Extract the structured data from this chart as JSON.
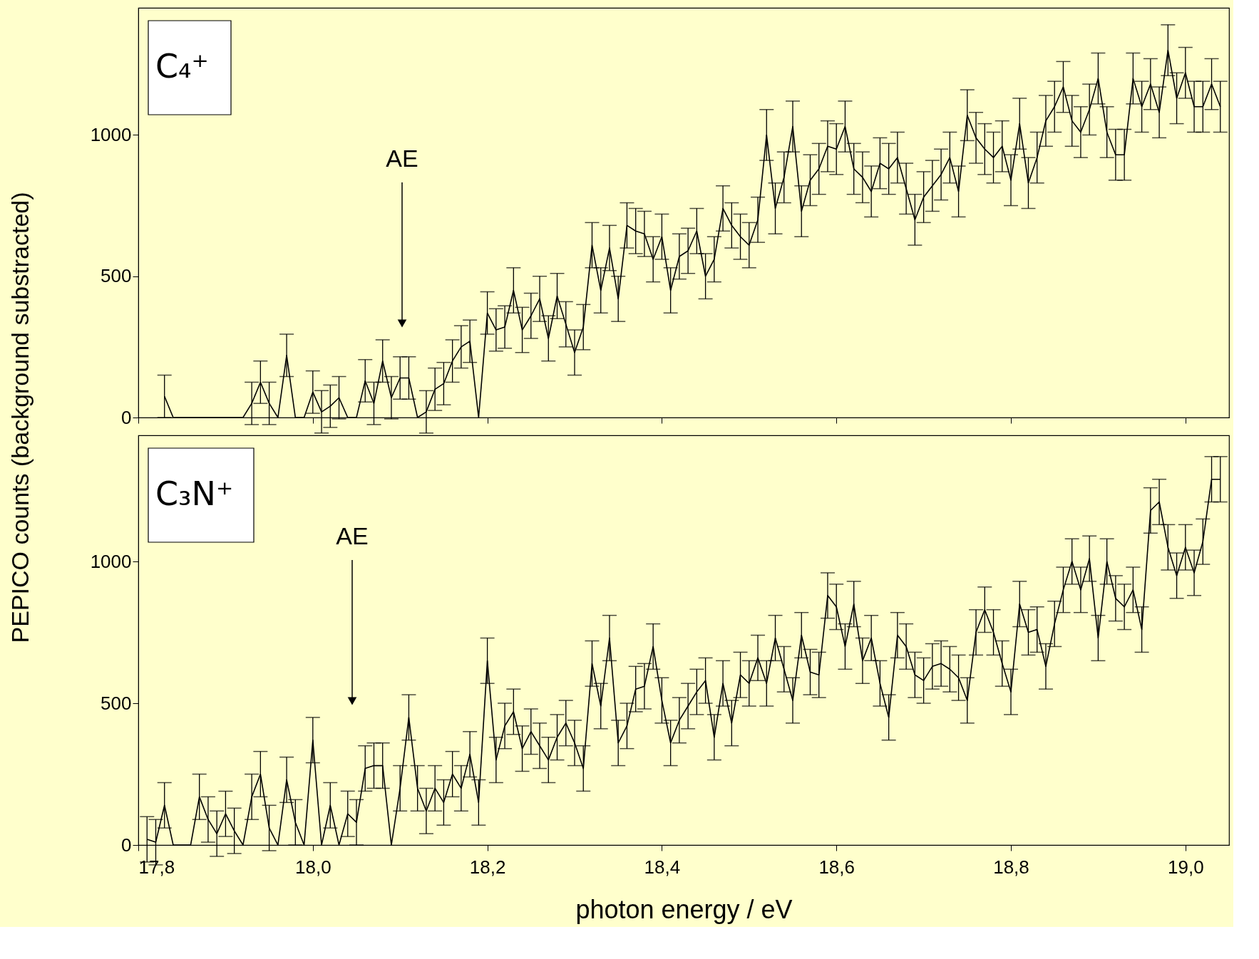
{
  "chart_data": [
    {
      "type": "line",
      "title": "C₄⁺",
      "ylabel": "PEPICO counts (background substracted)",
      "color": "#000000",
      "line_style": "solid",
      "grid": false,
      "tick_labels": "y",
      "xlim": [
        17.8,
        19.05
      ],
      "ylim": [
        0,
        1450
      ],
      "xticks": [
        {
          "value": 17.8,
          "label": null
        },
        {
          "value": 18.0,
          "label": null
        },
        {
          "value": 18.2,
          "label": null
        },
        {
          "value": 18.4,
          "label": null
        },
        {
          "value": 18.6,
          "label": null
        },
        {
          "value": 18.8,
          "label": null
        },
        {
          "value": 19.0,
          "label": null
        }
      ],
      "yticks": [
        0,
        500,
        1000
      ],
      "annotations": [
        "AE"
      ],
      "x": [
        17.83,
        17.84,
        17.85,
        17.86,
        17.87,
        17.88,
        17.89,
        17.9,
        17.91,
        17.92,
        17.93,
        17.94,
        17.95,
        17.96,
        17.97,
        17.98,
        17.99,
        18.0,
        18.01,
        18.02,
        18.03,
        18.04,
        18.05,
        18.06,
        18.07,
        18.08,
        18.09,
        18.1,
        18.11,
        18.12,
        18.13,
        18.14,
        18.15,
        18.16,
        18.17,
        18.18,
        18.19,
        18.2,
        18.21,
        18.22,
        18.23,
        18.24,
        18.25,
        18.26,
        18.27,
        18.28,
        18.29,
        18.3,
        18.31,
        18.32,
        18.33,
        18.34,
        18.35,
        18.36,
        18.37,
        18.38,
        18.39,
        18.4,
        18.41,
        18.42,
        18.43,
        18.44,
        18.45,
        18.46,
        18.47,
        18.48,
        18.49,
        18.5,
        18.51,
        18.52,
        18.53,
        18.54,
        18.55,
        18.56,
        18.57,
        18.58,
        18.59,
        18.6,
        18.61,
        18.62,
        18.63,
        18.64,
        18.65,
        18.66,
        18.67,
        18.68,
        18.69,
        18.7,
        18.71,
        18.72,
        18.73,
        18.74,
        18.75,
        18.76,
        18.77,
        18.78,
        18.79,
        18.8,
        18.81,
        18.82,
        18.83,
        18.84,
        18.85,
        18.86,
        18.87,
        18.88,
        18.89,
        18.9,
        18.91,
        18.92,
        18.93,
        18.94,
        18.95,
        18.96,
        18.97,
        18.98,
        18.99,
        19.0,
        19.01,
        19.02,
        19.03,
        19.04
      ],
      "values": [
        75,
        0,
        0,
        0,
        0,
        0,
        0,
        0,
        0,
        0,
        50,
        125,
        50,
        0,
        220,
        0,
        0,
        90,
        20,
        40,
        70,
        0,
        0,
        130,
        50,
        200,
        70,
        140,
        140,
        0,
        20,
        100,
        120,
        200,
        250,
        270,
        0,
        370,
        310,
        320,
        450,
        310,
        360,
        420,
        280,
        430,
        330,
        230,
        320,
        610,
        450,
        600,
        420,
        680,
        660,
        650,
        560,
        640,
        450,
        570,
        590,
        660,
        500,
        560,
        740,
        680,
        640,
        610,
        700,
        1000,
        740,
        850,
        1030,
        730,
        840,
        880,
        960,
        950,
        1030,
        880,
        850,
        800,
        900,
        880,
        920,
        810,
        700,
        780,
        820,
        860,
        920,
        800,
        1070,
        990,
        950,
        920,
        960,
        840,
        1040,
        830,
        920,
        1050,
        1100,
        1170,
        1050,
        1010,
        1090,
        1200,
        1010,
        930,
        930,
        1200,
        1100,
        1180,
        1080,
        1300,
        1130,
        1220,
        1100,
        1100,
        1180,
        1100
      ],
      "errors": [
        75,
        null,
        null,
        null,
        null,
        null,
        null,
        null,
        null,
        null,
        75,
        75,
        75,
        null,
        75,
        null,
        null,
        75,
        75,
        75,
        75,
        null,
        null,
        75,
        75,
        75,
        75,
        75,
        75,
        null,
        75,
        75,
        75,
        75,
        75,
        75,
        null,
        75,
        75,
        75,
        80,
        80,
        80,
        80,
        80,
        80,
        80,
        80,
        80,
        80,
        80,
        80,
        80,
        80,
        80,
        80,
        80,
        80,
        80,
        80,
        80,
        80,
        80,
        80,
        80,
        80,
        80,
        80,
        80,
        90,
        90,
        90,
        90,
        90,
        90,
        90,
        90,
        90,
        90,
        90,
        90,
        90,
        90,
        90,
        90,
        90,
        90,
        90,
        90,
        90,
        90,
        90,
        90,
        90,
        90,
        90,
        90,
        90,
        90,
        90,
        90,
        90,
        90,
        90,
        90,
        90,
        90,
        90,
        90,
        90,
        90,
        90,
        90,
        90,
        90,
        90,
        90,
        90,
        90,
        90,
        90,
        90
      ]
    },
    {
      "type": "line",
      "title": "C₃N⁺",
      "xlabel": "photon energy / eV",
      "color": "#000000",
      "line_style": "solid",
      "grid": false,
      "xlim": [
        17.8,
        19.05
      ],
      "ylim": [
        0,
        1445
      ],
      "xticks": [
        {
          "value": 17.8,
          "label": "17,8"
        },
        {
          "value": 18.0,
          "label": "18,0"
        },
        {
          "value": 18.2,
          "label": "18,2"
        },
        {
          "value": 18.4,
          "label": "18,4"
        },
        {
          "value": 18.6,
          "label": "18,6"
        },
        {
          "value": 18.8,
          "label": "18,8"
        },
        {
          "value": 19.0,
          "label": "19,0"
        }
      ],
      "yticks": [
        0,
        500,
        1000
      ],
      "annotations": [
        "AE"
      ],
      "x": [
        17.81,
        17.82,
        17.83,
        17.84,
        17.85,
        17.86,
        17.87,
        17.88,
        17.89,
        17.9,
        17.91,
        17.92,
        17.93,
        17.94,
        17.95,
        17.96,
        17.97,
        17.98,
        17.99,
        18.0,
        18.01,
        18.02,
        18.03,
        18.04,
        18.05,
        18.06,
        18.07,
        18.08,
        18.09,
        18.1,
        18.11,
        18.12,
        18.13,
        18.14,
        18.15,
        18.16,
        18.17,
        18.18,
        18.19,
        18.2,
        18.21,
        18.22,
        18.23,
        18.24,
        18.25,
        18.26,
        18.27,
        18.28,
        18.29,
        18.3,
        18.31,
        18.32,
        18.33,
        18.34,
        18.35,
        18.36,
        18.37,
        18.38,
        18.39,
        18.4,
        18.41,
        18.42,
        18.43,
        18.44,
        18.45,
        18.46,
        18.47,
        18.48,
        18.49,
        18.5,
        18.51,
        18.52,
        18.53,
        18.54,
        18.55,
        18.56,
        18.57,
        18.58,
        18.59,
        18.6,
        18.61,
        18.62,
        18.63,
        18.64,
        18.65,
        18.66,
        18.67,
        18.68,
        18.69,
        18.7,
        18.71,
        18.72,
        18.73,
        18.74,
        18.75,
        18.76,
        18.77,
        18.78,
        18.79,
        18.8,
        18.81,
        18.82,
        18.83,
        18.84,
        18.85,
        18.86,
        18.87,
        18.88,
        18.89,
        18.9,
        18.91,
        18.92,
        18.93,
        18.94,
        18.95,
        18.96,
        18.97,
        18.98,
        18.99,
        19.0,
        19.01,
        19.02,
        19.03,
        19.04
      ],
      "values": [
        20,
        10,
        140,
        0,
        0,
        0,
        170,
        90,
        40,
        110,
        50,
        0,
        170,
        250,
        60,
        0,
        230,
        80,
        0,
        370,
        0,
        140,
        0,
        110,
        80,
        270,
        280,
        280,
        0,
        200,
        450,
        200,
        120,
        200,
        150,
        250,
        200,
        320,
        150,
        650,
        300,
        420,
        470,
        340,
        400,
        350,
        300,
        380,
        430,
        360,
        270,
        640,
        490,
        730,
        360,
        420,
        550,
        560,
        700,
        510,
        360,
        440,
        490,
        540,
        580,
        380,
        570,
        430,
        600,
        570,
        660,
        570,
        730,
        620,
        510,
        740,
        610,
        600,
        880,
        840,
        700,
        850,
        650,
        730,
        570,
        450,
        740,
        700,
        600,
        580,
        630,
        640,
        620,
        590,
        510,
        750,
        830,
        750,
        640,
        540,
        850,
        750,
        760,
        630,
        780,
        900,
        1000,
        900,
        1010,
        730,
        1000,
        870,
        840,
        900,
        760,
        1180,
        1210,
        1050,
        950,
        1050,
        960,
        1070,
        1290,
        1290
      ],
      "errors": [
        80,
        80,
        80,
        null,
        null,
        null,
        80,
        80,
        80,
        80,
        80,
        null,
        80,
        80,
        80,
        null,
        80,
        80,
        null,
        80,
        null,
        80,
        null,
        80,
        80,
        80,
        80,
        80,
        null,
        80,
        80,
        80,
        80,
        80,
        80,
        80,
        80,
        80,
        80,
        80,
        80,
        80,
        80,
        80,
        80,
        80,
        80,
        80,
        80,
        80,
        80,
        80,
        80,
        80,
        80,
        80,
        80,
        80,
        80,
        80,
        80,
        80,
        80,
        80,
        80,
        80,
        80,
        80,
        80,
        80,
        80,
        80,
        80,
        80,
        80,
        80,
        80,
        80,
        80,
        80,
        80,
        80,
        80,
        80,
        80,
        80,
        80,
        80,
        80,
        80,
        80,
        80,
        80,
        80,
        80,
        80,
        80,
        80,
        80,
        80,
        80,
        80,
        80,
        80,
        80,
        80,
        80,
        80,
        80,
        80,
        80,
        80,
        80,
        80,
        80,
        80,
        80,
        80,
        80,
        80,
        80,
        80,
        80,
        80
      ]
    }
  ]
}
